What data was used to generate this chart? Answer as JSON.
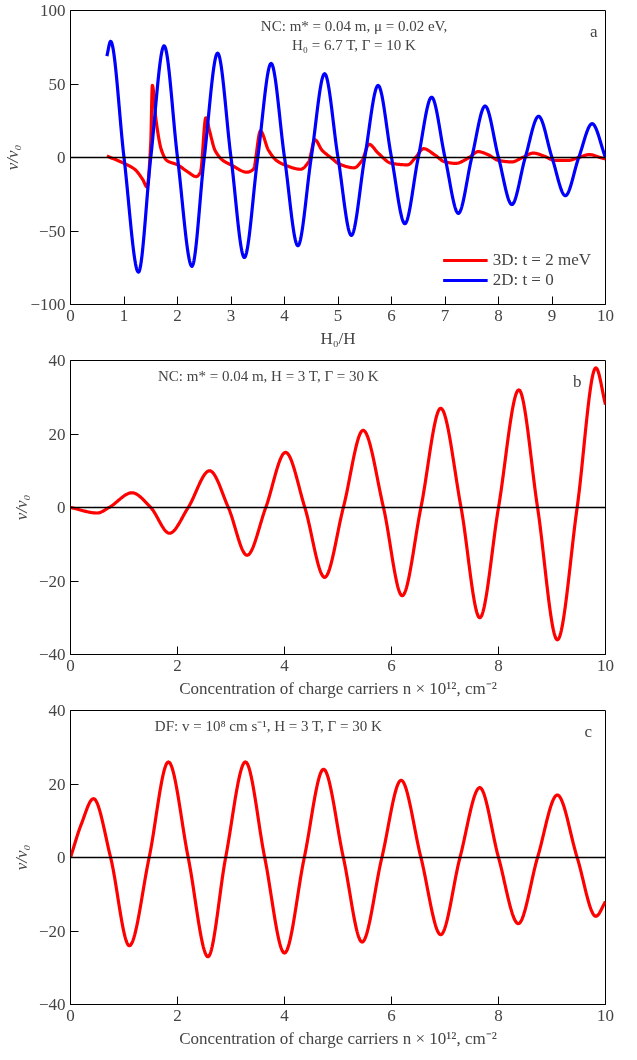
{
  "chart_data": [
    {
      "type": "line",
      "xlabel": "H₀/H",
      "ylabel": "v/v₀",
      "xlim": [
        0,
        10
      ],
      "ylim": [
        -100,
        100
      ],
      "xticks": [
        0,
        1,
        2,
        3,
        4,
        5,
        6,
        7,
        8,
        9,
        10
      ],
      "yticks": [
        -100,
        -50,
        0,
        50,
        100
      ],
      "grid": false,
      "legend": "bottom right",
      "annotations": [
        "NC: m* = 0.04 m, μ = 0.02 eV,\nH₀ = 6.7 T, Γ = 10 K",
        "a"
      ],
      "ref_lines": [
        {
          "axis": "y",
          "value": 0,
          "color": "#000000"
        }
      ],
      "series": [
        {
          "name": "3D: t = 2 meV",
          "color": "#ff0000",
          "x": [
            0.68,
            1.0,
            1.2,
            1.35,
            1.43,
            1.5,
            1.53,
            1.6,
            1.7,
            1.8,
            2.0,
            2.2,
            2.35,
            2.43,
            2.53,
            2.6,
            2.7,
            2.85,
            3.0,
            3.3,
            3.42,
            3.55,
            3.7,
            3.85,
            4.0,
            4.3,
            4.45,
            4.57,
            4.7,
            4.9,
            5.0,
            5.3,
            5.45,
            5.58,
            5.75,
            6.0,
            6.3,
            6.45,
            6.6,
            6.8,
            7.0,
            7.2,
            7.45,
            7.62,
            7.8,
            8.0,
            8.25,
            8.45,
            8.65,
            8.85,
            9.05,
            9.3,
            9.5,
            9.7,
            9.9,
            10
          ],
          "values": [
            1,
            -4,
            -8,
            -15,
            -20,
            10,
            49,
            25,
            5,
            -2,
            -5,
            -10,
            -13,
            -10,
            27,
            18,
            5,
            -2,
            -5,
            -10,
            -8,
            18,
            5,
            -2,
            -5,
            -8,
            -3,
            12,
            5,
            -1,
            -4,
            -7,
            -2,
            9,
            3,
            -4,
            -5,
            0,
            6,
            2,
            -3,
            -4,
            0,
            4,
            2,
            -2,
            -3,
            0,
            3,
            1,
            -2,
            -2,
            0,
            2,
            0,
            -1
          ]
        },
        {
          "name": "2D: t = 0",
          "color": "#0000ff",
          "x": [
            0.68,
            0.75,
            1.0,
            1.27,
            1.5,
            1.75,
            2.0,
            2.27,
            2.5,
            2.75,
            3.0,
            3.25,
            3.5,
            3.75,
            4.0,
            4.25,
            4.5,
            4.75,
            5.0,
            5.25,
            5.5,
            5.75,
            6.0,
            6.25,
            6.5,
            6.75,
            7.0,
            7.25,
            7.5,
            7.75,
            8.0,
            8.25,
            8.5,
            8.75,
            9.0,
            9.25,
            9.5,
            9.75,
            10
          ],
          "values": [
            69,
            79,
            0,
            -78,
            0,
            76,
            0,
            -74,
            0,
            71,
            0,
            -68,
            0,
            64,
            0,
            -60,
            0,
            57,
            0,
            -53,
            0,
            49,
            0,
            -45,
            0,
            41,
            0,
            -38,
            0,
            35,
            0,
            -32,
            0,
            28,
            0,
            -26,
            0,
            23,
            0
          ]
        }
      ]
    },
    {
      "type": "line",
      "xlabel": "Concentration of charge carriers n × 10¹², cm⁻²",
      "ylabel": "v/v₀",
      "xlim": [
        0,
        10
      ],
      "ylim": [
        -40,
        40
      ],
      "xticks": [
        0,
        2,
        4,
        6,
        8,
        10
      ],
      "yticks": [
        -40,
        -20,
        0,
        20,
        40
      ],
      "grid": false,
      "annotations": [
        "NC: m* = 0.04 m, H = 3 T, Γ = 30 K",
        "b"
      ],
      "ref_lines": [
        {
          "axis": "y",
          "value": 0,
          "color": "#000000"
        }
      ],
      "series": [
        {
          "color": "#ff0000",
          "x": [
            0,
            0.5,
            0.72,
            1.15,
            1.5,
            1.85,
            2.2,
            2.6,
            2.95,
            3.3,
            3.65,
            4.02,
            4.38,
            4.75,
            5.1,
            5.47,
            5.85,
            6.2,
            6.55,
            6.92,
            7.3,
            7.65,
            8.0,
            8.38,
            8.73,
            9.1,
            9.47,
            9.82,
            10
          ],
          "values": [
            0,
            -1.5,
            0,
            4,
            0,
            -7,
            0,
            10,
            0,
            -13,
            0,
            15,
            0,
            -19,
            0,
            21,
            0,
            -24,
            0,
            27,
            0,
            -30,
            0,
            32,
            0,
            -36,
            0,
            38,
            28
          ]
        }
      ]
    },
    {
      "type": "line",
      "xlabel": "Concentration of charge carriers n × 10¹², cm⁻²",
      "ylabel": "v/v₀",
      "xlim": [
        0,
        10
      ],
      "ylim": [
        -40,
        40
      ],
      "xticks": [
        0,
        2,
        4,
        6,
        8,
        10
      ],
      "yticks": [
        -40,
        -20,
        0,
        20,
        40
      ],
      "grid": false,
      "annotations": [
        "DF: v = 10⁸ cm s⁻¹, H = 3 T, Γ = 30 K",
        "c"
      ],
      "ref_lines": [
        {
          "axis": "y",
          "value": 0,
          "color": "#000000"
        }
      ],
      "series": [
        {
          "color": "#ff0000",
          "x": [
            0,
            0.2,
            0.43,
            0.75,
            1.1,
            1.47,
            1.83,
            2.2,
            2.57,
            2.9,
            3.27,
            3.63,
            4.0,
            4.37,
            4.73,
            5.1,
            5.45,
            5.82,
            6.18,
            6.55,
            6.92,
            7.28,
            7.65,
            8.0,
            8.37,
            8.73,
            9.1,
            9.47,
            9.82,
            10
          ],
          "values": [
            0,
            9,
            16,
            0,
            -24,
            0,
            26,
            0,
            -27,
            0,
            26,
            0,
            -26,
            0,
            24,
            0,
            -23,
            0,
            21,
            0,
            -21,
            0,
            19,
            0,
            -18,
            0,
            17,
            0,
            -16,
            -12
          ]
        }
      ]
    }
  ]
}
